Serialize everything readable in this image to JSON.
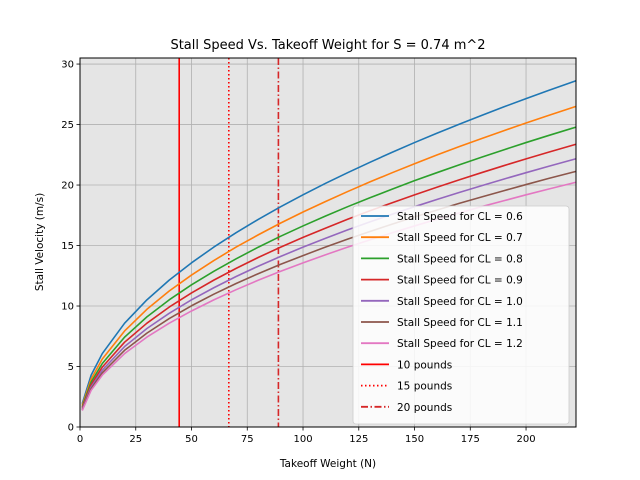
{
  "chart_data": {
    "type": "line",
    "title": "Stall Speed Vs. Takeoff Weight for S = 0.74 m^2",
    "xlabel": "Takeoff Weight (N)",
    "ylabel": "Stall Velocity (m/s)",
    "xlim": [
      0,
      222.4
    ],
    "ylim": [
      0,
      30.5
    ],
    "xticks": [
      0,
      25,
      50,
      75,
      100,
      125,
      150,
      175,
      200
    ],
    "yticks": [
      0,
      5,
      10,
      15,
      20,
      25,
      30
    ],
    "grid": true,
    "legend_position": "lower-right",
    "background": "#e5e5e5",
    "x": [
      1,
      5,
      10,
      20,
      30,
      40,
      50,
      60,
      70,
      80,
      90,
      100,
      110,
      120,
      130,
      140,
      150,
      160,
      170,
      180,
      190,
      200,
      210,
      222.4
    ],
    "series": [
      {
        "name": "Stall Speed for CL = 0.6",
        "color": "#1f77b4",
        "style": "solid",
        "values": [
          1.92,
          4.29,
          6.07,
          8.58,
          10.51,
          12.14,
          13.57,
          14.87,
          16.06,
          17.17,
          18.21,
          19.19,
          20.13,
          21.02,
          21.88,
          22.71,
          23.51,
          24.28,
          25.02,
          25.75,
          26.46,
          27.14,
          27.81,
          28.62
        ]
      },
      {
        "name": "Stall Speed for CL = 0.7",
        "color": "#ff7f0e",
        "style": "solid",
        "values": [
          1.78,
          3.97,
          5.62,
          7.94,
          9.73,
          11.24,
          12.56,
          13.76,
          14.87,
          15.89,
          16.86,
          17.77,
          18.63,
          19.46,
          20.26,
          21.02,
          21.76,
          22.48,
          23.17,
          23.84,
          24.49,
          25.13,
          25.75,
          26.5
        ]
      },
      {
        "name": "Stall Speed for CL = 0.8",
        "color": "#2ca02c",
        "style": "solid",
        "values": [
          1.66,
          3.72,
          5.25,
          7.43,
          9.1,
          10.51,
          11.75,
          12.87,
          13.9,
          14.87,
          15.77,
          16.62,
          17.43,
          18.21,
          18.95,
          19.66,
          20.36,
          21.02,
          21.67,
          22.3,
          22.91,
          23.51,
          24.09,
          24.79
        ]
      },
      {
        "name": "Stall Speed for CL = 0.9",
        "color": "#d62728",
        "style": "solid",
        "values": [
          1.57,
          3.5,
          4.95,
          7.01,
          8.58,
          9.91,
          11.08,
          12.14,
          13.11,
          14.02,
          14.87,
          15.67,
          16.43,
          17.17,
          17.87,
          18.54,
          19.19,
          19.82,
          20.43,
          21.02,
          21.6,
          22.16,
          22.71,
          23.37
        ]
      },
      {
        "name": "Stall Speed for CL = 1.0",
        "color": "#9467bd",
        "style": "solid",
        "values": [
          1.49,
          3.32,
          4.7,
          6.65,
          8.14,
          9.4,
          10.51,
          11.51,
          12.44,
          13.3,
          14.1,
          14.87,
          15.59,
          16.29,
          16.95,
          17.59,
          18.21,
          18.8,
          19.38,
          19.94,
          20.49,
          21.02,
          21.54,
          22.17
        ]
      },
      {
        "name": "Stall Speed for CL = 1.1",
        "color": "#8c564b",
        "style": "solid",
        "values": [
          1.42,
          3.17,
          4.48,
          6.34,
          7.76,
          8.96,
          10.02,
          10.98,
          11.86,
          12.68,
          13.45,
          14.17,
          14.87,
          15.53,
          16.16,
          16.77,
          17.36,
          17.93,
          18.48,
          19.01,
          19.53,
          20.04,
          20.54,
          21.13
        ]
      },
      {
        "name": "Stall Speed for CL = 1.2",
        "color": "#e377c2",
        "style": "solid",
        "values": [
          1.36,
          3.03,
          4.29,
          6.07,
          7.43,
          8.58,
          9.59,
          10.51,
          11.35,
          12.14,
          12.87,
          13.57,
          14.23,
          14.87,
          15.47,
          16.06,
          16.62,
          17.17,
          17.69,
          18.21,
          18.7,
          19.19,
          19.66,
          20.23
        ]
      }
    ],
    "vlines": [
      {
        "name": "10 pounds",
        "x": 44.48,
        "color": "#ff0000",
        "style": "solid"
      },
      {
        "name": "15 pounds",
        "x": 66.72,
        "color": "#ff0000",
        "style": "dotted"
      },
      {
        "name": "20 pounds",
        "x": 88.96,
        "color": "#d62728",
        "style": "dashdot"
      }
    ]
  }
}
